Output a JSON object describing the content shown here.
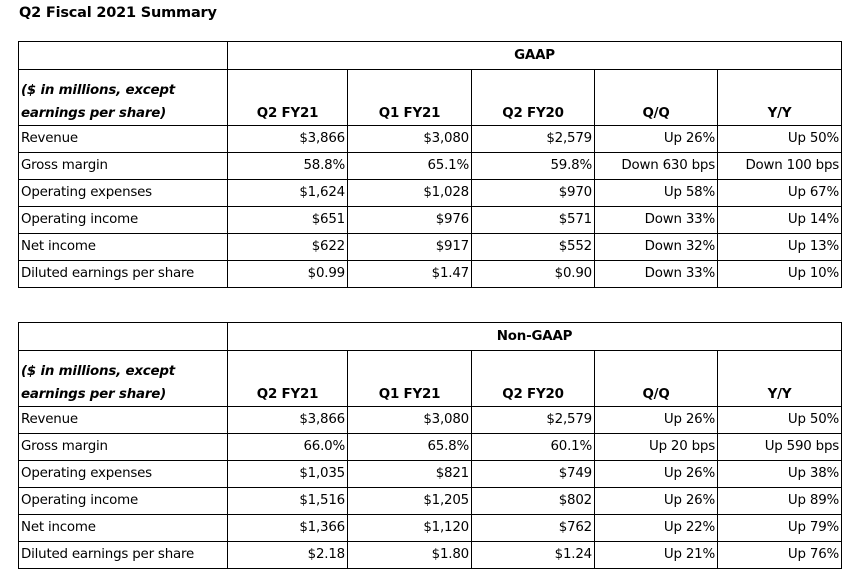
{
  "page_title": "Q2 Fiscal 2021 Summary",
  "tables": [
    {
      "caption": "GAAP",
      "unit_note_line1": "($ in millions, except",
      "unit_note_line2": "earnings per share)",
      "columns": [
        "Q2 FY21",
        "Q1 FY21",
        "Q2 FY20",
        "Q/Q",
        "Y/Y"
      ],
      "rows": [
        {
          "label": "Revenue",
          "values": [
            "$3,866",
            "$3,080",
            "$2,579",
            "Up 26%",
            "Up 50%"
          ]
        },
        {
          "label": "Gross margin",
          "values": [
            "58.8%",
            "65.1%",
            "59.8%",
            "Down 630 bps",
            "Down 100 bps"
          ]
        },
        {
          "label": "Operating expenses",
          "values": [
            "$1,624",
            "$1,028",
            "$970",
            "Up 58%",
            "Up 67%"
          ]
        },
        {
          "label": "Operating income",
          "values": [
            "$651",
            "$976",
            "$571",
            "Down 33%",
            "Up 14%"
          ]
        },
        {
          "label": "Net income",
          "values": [
            "$622",
            "$917",
            "$552",
            "Down 32%",
            "Up 13%"
          ]
        },
        {
          "label": "Diluted earnings per share",
          "values": [
            "$0.99",
            "$1.47",
            "$0.90",
            "Down 33%",
            "Up 10%"
          ]
        }
      ]
    },
    {
      "caption": "Non-GAAP",
      "unit_note_line1": "($ in millions, except",
      "unit_note_line2": "earnings per share)",
      "columns": [
        "Q2 FY21",
        "Q1 FY21",
        "Q2 FY20",
        "Q/Q",
        "Y/Y"
      ],
      "rows": [
        {
          "label": "Revenue",
          "values": [
            "$3,866",
            "$3,080",
            "$2,579",
            "Up 26%",
            "Up 50%"
          ]
        },
        {
          "label": "Gross margin",
          "values": [
            "66.0%",
            "65.8%",
            "60.1%",
            "Up 20 bps",
            "Up 590 bps"
          ]
        },
        {
          "label": "Operating expenses",
          "values": [
            "$1,035",
            "$821",
            "$749",
            "Up 26%",
            "Up 38%"
          ]
        },
        {
          "label": "Operating income",
          "values": [
            "$1,516",
            "$1,205",
            "$802",
            "Up 26%",
            "Up 89%"
          ]
        },
        {
          "label": "Net income",
          "values": [
            "$1,366",
            "$1,120",
            "$762",
            "Up 22%",
            "Up 79%"
          ]
        },
        {
          "label": "Diluted earnings per share",
          "values": [
            "$2.18",
            "$1.80",
            "$1.24",
            "Up 21%",
            "Up 76%"
          ]
        }
      ]
    }
  ]
}
